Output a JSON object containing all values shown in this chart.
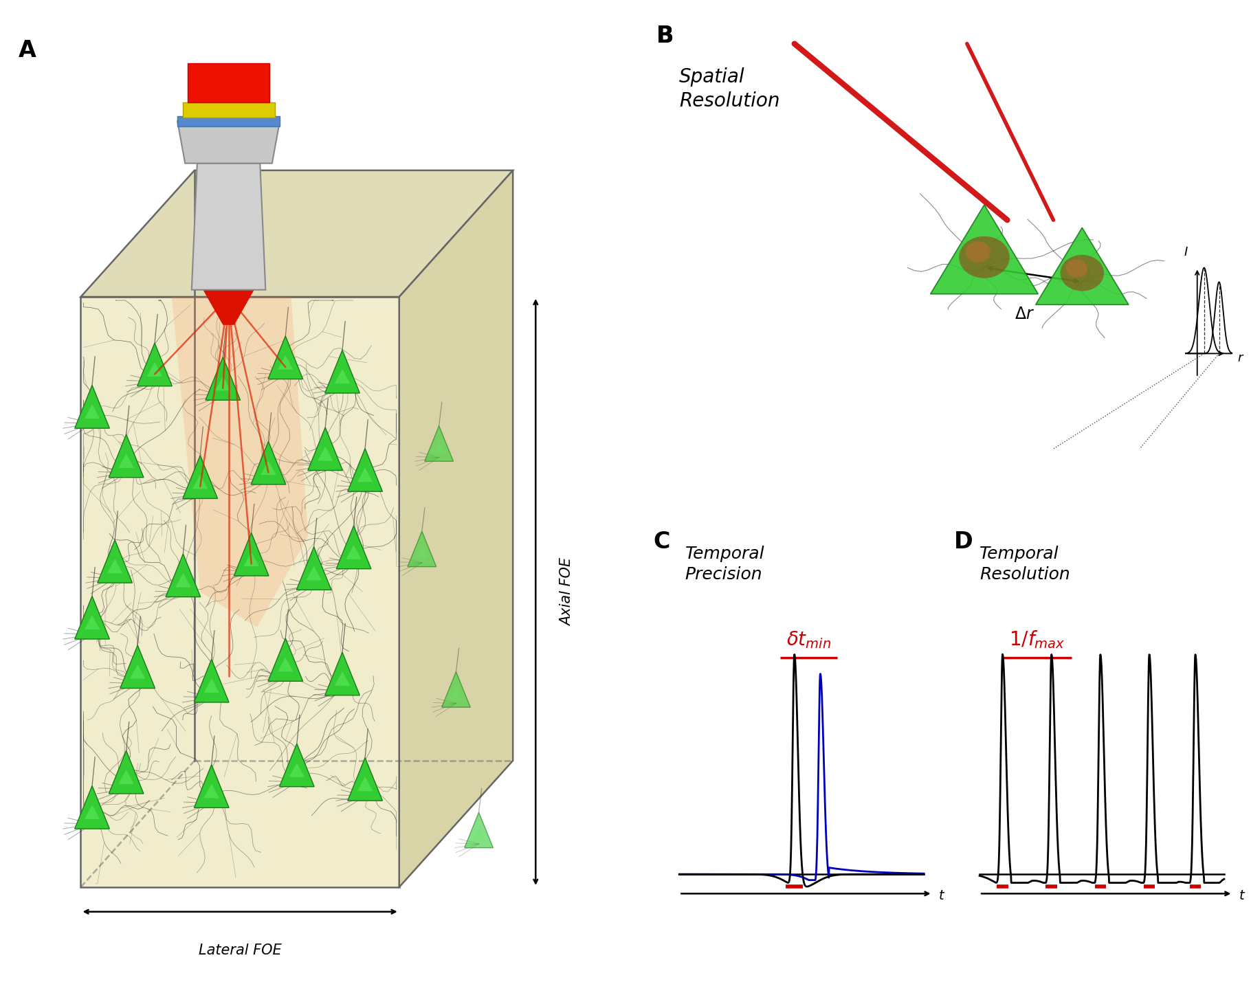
{
  "panel_labels": [
    "A",
    "B",
    "C",
    "D"
  ],
  "panel_label_fontsize": 24,
  "panel_label_fontweight": "bold",
  "background_color": "#ffffff",
  "panel_A": {
    "box_front_color": "#f0eccc",
    "box_top_color": "#e0dcb8",
    "box_right_color": "#d8d4a8",
    "box_edge_color": "#666666",
    "axial_foe_label": "Axial FOE",
    "lateral_foe_label": "Lateral FOE"
  },
  "panel_B": {
    "title": "Spatial\nResolution",
    "delta_r": "Δr",
    "i_label": "I",
    "r_label": "r"
  },
  "panel_C": {
    "title": "Temporal\nPrecision",
    "label": "δt_min",
    "t_label": "t",
    "stim_color": "#cc0000",
    "spike1_color": "#000000",
    "spike2_color": "#0000bb"
  },
  "panel_D": {
    "title": "Temporal\nResolution",
    "label": "1/f_max",
    "t_label": "t",
    "stim_color": "#cc0000",
    "spike_color": "#000000"
  }
}
